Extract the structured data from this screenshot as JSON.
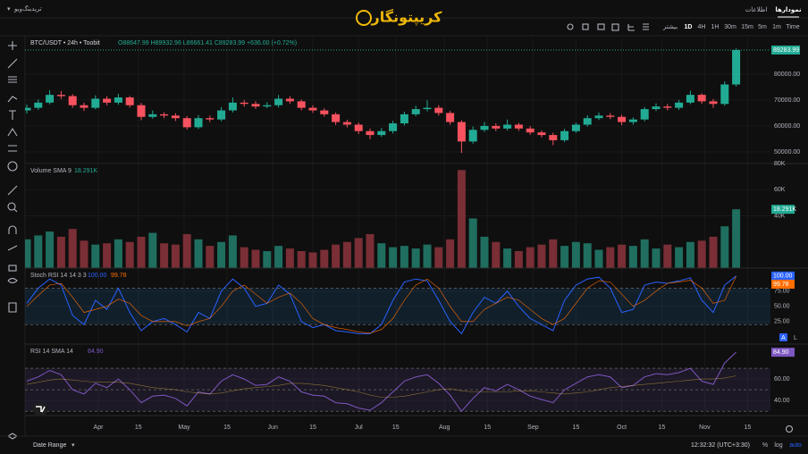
{
  "ui": {
    "brand_menu": "تریدینگ‌ویو",
    "logo": "کریپتونگار",
    "tabs": [
      "نمودارها",
      "اطلاعات"
    ],
    "timeframes": [
      "Time",
      "1m",
      "5m",
      "15m",
      "30m",
      "1H",
      "4H",
      "1D"
    ],
    "more": "بیشتر",
    "date_range": "Date Range",
    "clock": "12:32:32 (UTC+3:30)",
    "scale_buttons": [
      "%",
      "log",
      "auto"
    ],
    "pane_buttons": [
      "A",
      "L"
    ]
  },
  "chart_data": [
    {
      "type": "candlestick",
      "title": "BTC/USDT • 24h • Toobit",
      "ohlc_text": "O88647.99 H89932.96 L86661.41 C89283.99 +636.00 (+0.72%)",
      "up_color": "#22ab94",
      "down_color": "#f7525f",
      "last_label": "89283.99",
      "x": [
        0,
        4,
        8,
        12,
        16,
        20,
        24,
        28,
        32,
        36,
        40,
        44,
        48,
        52,
        56,
        60,
        64,
        68,
        72,
        76,
        80,
        84,
        88,
        92,
        96,
        100,
        104,
        108,
        112,
        116,
        120,
        124,
        128,
        132,
        136,
        140,
        144,
        148,
        152,
        156,
        160,
        164,
        168,
        172,
        176,
        180,
        184,
        188,
        192,
        196,
        200,
        204,
        208,
        212,
        216,
        220,
        224,
        228,
        232,
        236,
        240,
        244,
        248
      ],
      "xlim": [
        0,
        260
      ],
      "xticks": [
        {
          "value": 25,
          "label": "Apr"
        },
        {
          "value": 39,
          "label": "15"
        },
        {
          "value": 55,
          "label": "May"
        },
        {
          "value": 70,
          "label": "15"
        },
        {
          "value": 86,
          "label": "Jun"
        },
        {
          "value": 100,
          "label": "15"
        },
        {
          "value": 116,
          "label": "Jul"
        },
        {
          "value": 129,
          "label": "15"
        },
        {
          "value": 146,
          "label": "Aug"
        },
        {
          "value": 161,
          "label": "15"
        },
        {
          "value": 177,
          "label": "Sep"
        },
        {
          "value": 192,
          "label": "15"
        },
        {
          "value": 208,
          "label": "Oct"
        },
        {
          "value": 222,
          "label": "15"
        },
        {
          "value": 237,
          "label": "Nov"
        },
        {
          "value": 252,
          "label": "15"
        }
      ],
      "ylim": [
        45500,
        94100
      ],
      "yticks": [
        {
          "value": 80000,
          "label": "80000.00"
        },
        {
          "value": 70000,
          "label": "70000.00"
        },
        {
          "value": 60000,
          "label": "60000.00"
        },
        {
          "value": 50000,
          "label": "50000.00"
        }
      ],
      "open": [
        66000,
        67000,
        69000,
        72000,
        71500,
        68000,
        67000,
        70500,
        69000,
        71000,
        68000,
        63500,
        64500,
        64000,
        63000,
        59500,
        63000,
        62500,
        66000,
        69000,
        68500,
        67500,
        68000,
        70500,
        69500,
        67000,
        66000,
        64500,
        61500,
        60500,
        58000,
        56500,
        58000,
        61000,
        64500,
        66500,
        67000,
        65000,
        61500,
        54000,
        58500,
        60000,
        59000,
        60500,
        59000,
        57500,
        56500,
        54500,
        58000,
        60500,
        63000,
        64000,
        63500,
        61500,
        62500,
        66500,
        67500,
        67000,
        69000,
        72000,
        69500,
        68500,
        76000
      ],
      "high": [
        68200,
        70200,
        73800,
        73500,
        72300,
        69000,
        71800,
        71500,
        72400,
        71600,
        68900,
        66000,
        65300,
        64900,
        63800,
        64200,
        64000,
        67300,
        71000,
        70000,
        69600,
        69200,
        71900,
        71500,
        70200,
        68000,
        66800,
        65200,
        62400,
        61300,
        59000,
        59200,
        62000,
        65500,
        67800,
        69900,
        68000,
        65800,
        62200,
        59800,
        61500,
        61000,
        62500,
        61200,
        59900,
        58300,
        57400,
        58900,
        61300,
        64100,
        65200,
        65000,
        64300,
        63300,
        67300,
        68700,
        68500,
        70000,
        73600,
        72600,
        70400,
        77200,
        89933
      ],
      "low": [
        64800,
        66200,
        68300,
        70400,
        67000,
        65800,
        66400,
        68000,
        68200,
        67100,
        62200,
        62800,
        63000,
        61900,
        58600,
        58800,
        61500,
        61800,
        65200,
        67400,
        66600,
        66900,
        67100,
        68600,
        66000,
        65000,
        63600,
        60400,
        59400,
        56900,
        54900,
        55800,
        57100,
        60200,
        63700,
        65600,
        64000,
        60500,
        49600,
        53200,
        57700,
        58000,
        58200,
        58100,
        56600,
        55600,
        52600,
        53800,
        57300,
        59800,
        62300,
        62600,
        60300,
        60500,
        61800,
        65800,
        66000,
        66200,
        68400,
        68600,
        67000,
        67800,
        75200
      ],
      "close": [
        67000,
        69000,
        72000,
        71500,
        68000,
        67000,
        70500,
        69000,
        71000,
        68000,
        63500,
        64500,
        64000,
        63000,
        59500,
        63000,
        62500,
        66000,
        69000,
        68500,
        67500,
        68000,
        70500,
        69500,
        67000,
        66000,
        64500,
        61500,
        60500,
        58000,
        56500,
        58000,
        61000,
        64500,
        66500,
        67000,
        65000,
        61500,
        54000,
        58500,
        60000,
        59000,
        60500,
        59000,
        57500,
        56500,
        54500,
        58000,
        60500,
        63000,
        64000,
        63500,
        61500,
        62500,
        66500,
        67500,
        67000,
        69000,
        72000,
        69500,
        68500,
        76000,
        89284
      ]
    },
    {
      "type": "bar",
      "title": "Volume SMA 9",
      "legend_value": "18.291K",
      "last_label": "18.291K",
      "up_color": "#1f6e5f",
      "down_color": "#7a2e35",
      "ylim": [
        0,
        80000
      ],
      "yticks": [
        {
          "value": 80000,
          "label": "80K"
        },
        {
          "value": 60000,
          "label": "60K"
        },
        {
          "value": 40000,
          "label": "40K"
        }
      ],
      "values": [
        22000,
        25000,
        28000,
        24000,
        30000,
        21000,
        18000,
        19000,
        22000,
        20000,
        24000,
        27000,
        19000,
        18000,
        26000,
        22000,
        17000,
        20000,
        25000,
        16000,
        14000,
        13000,
        17000,
        15000,
        13000,
        12000,
        14000,
        18000,
        20000,
        23000,
        26000,
        19000,
        16000,
        17000,
        15000,
        18000,
        16000,
        22000,
        75000,
        38000,
        24000,
        20000,
        15000,
        13000,
        16000,
        18000,
        22000,
        17000,
        20000,
        19000,
        14000,
        16000,
        18000,
        17000,
        22000,
        15000,
        18000,
        16000,
        20000,
        21000,
        24000,
        32000,
        45000
      ]
    },
    {
      "type": "line",
      "title": "Stoch RSI 14 14 3 3",
      "ylim": [
        -12,
        113
      ],
      "yticks": [
        {
          "value": 75,
          "label": "75.00"
        },
        {
          "value": 50,
          "label": "50.00"
        },
        {
          "value": 25,
          "label": "25.00"
        }
      ],
      "bands": [
        20,
        80
      ],
      "band_fill": "rgba(33,150,243,0.12)",
      "series": [
        {
          "name": "100.00",
          "color": "#2962ff",
          "last_label": "100.00",
          "values": [
            55,
            80,
            95,
            85,
            35,
            20,
            60,
            45,
            80,
            40,
            10,
            25,
            30,
            20,
            8,
            40,
            30,
            75,
            95,
            80,
            50,
            55,
            85,
            70,
            25,
            15,
            20,
            10,
            8,
            5,
            5,
            20,
            60,
            90,
            95,
            92,
            60,
            25,
            5,
            40,
            65,
            55,
            75,
            50,
            30,
            20,
            10,
            60,
            85,
            95,
            98,
            80,
            40,
            45,
            85,
            90,
            88,
            92,
            97,
            60,
            40,
            85,
            100
          ]
        },
        {
          "name": "99.78",
          "color": "#ff6d00",
          "last_label": "99.78",
          "values": [
            50,
            68,
            85,
            88,
            65,
            40,
            45,
            50,
            62,
            55,
            35,
            25,
            25,
            25,
            18,
            25,
            30,
            50,
            75,
            85,
            70,
            55,
            65,
            72,
            55,
            30,
            20,
            15,
            12,
            8,
            6,
            12,
            30,
            60,
            85,
            95,
            80,
            50,
            25,
            25,
            45,
            55,
            65,
            60,
            45,
            30,
            20,
            30,
            55,
            80,
            92,
            90,
            70,
            50,
            60,
            75,
            88,
            90,
            93,
            80,
            55,
            60,
            99.78
          ]
        }
      ]
    },
    {
      "type": "line",
      "title": "RSI 14 SMA 14",
      "ylim": [
        26,
        92.5
      ],
      "yticks": [
        {
          "value": 60,
          "label": "60.00"
        },
        {
          "value": 40,
          "label": "40.00"
        }
      ],
      "bands": [
        30,
        50,
        70
      ],
      "band_fill": "rgba(126,87,194,0.12)",
      "series": [
        {
          "name": "84.90",
          "color": "#7e57c2",
          "last_label": "84.90",
          "values": [
            58,
            62,
            68,
            64,
            50,
            46,
            56,
            52,
            60,
            50,
            38,
            44,
            45,
            42,
            35,
            48,
            46,
            58,
            64,
            60,
            54,
            55,
            62,
            58,
            48,
            45,
            44,
            38,
            37,
            33,
            31,
            38,
            48,
            58,
            62,
            64,
            56,
            45,
            30,
            42,
            52,
            49,
            55,
            50,
            44,
            41,
            38,
            50,
            56,
            62,
            64,
            62,
            52,
            54,
            62,
            65,
            64,
            66,
            70,
            58,
            55,
            75,
            84.9
          ]
        },
        {
          "color": "#f7c948",
          "values": [
            55,
            57,
            59,
            60,
            59,
            58,
            57,
            57,
            57,
            56,
            54,
            52,
            51,
            50,
            48,
            47,
            46,
            47,
            49,
            51,
            52,
            53,
            54,
            56,
            56,
            55,
            54,
            52,
            50,
            48,
            45,
            43,
            43,
            44,
            46,
            48,
            50,
            51,
            49,
            48,
            48,
            48,
            48,
            49,
            49,
            48,
            47,
            46,
            47,
            48,
            50,
            52,
            53,
            54,
            55,
            56,
            57,
            58,
            59,
            60,
            60,
            61,
            63
          ]
        }
      ]
    }
  ]
}
